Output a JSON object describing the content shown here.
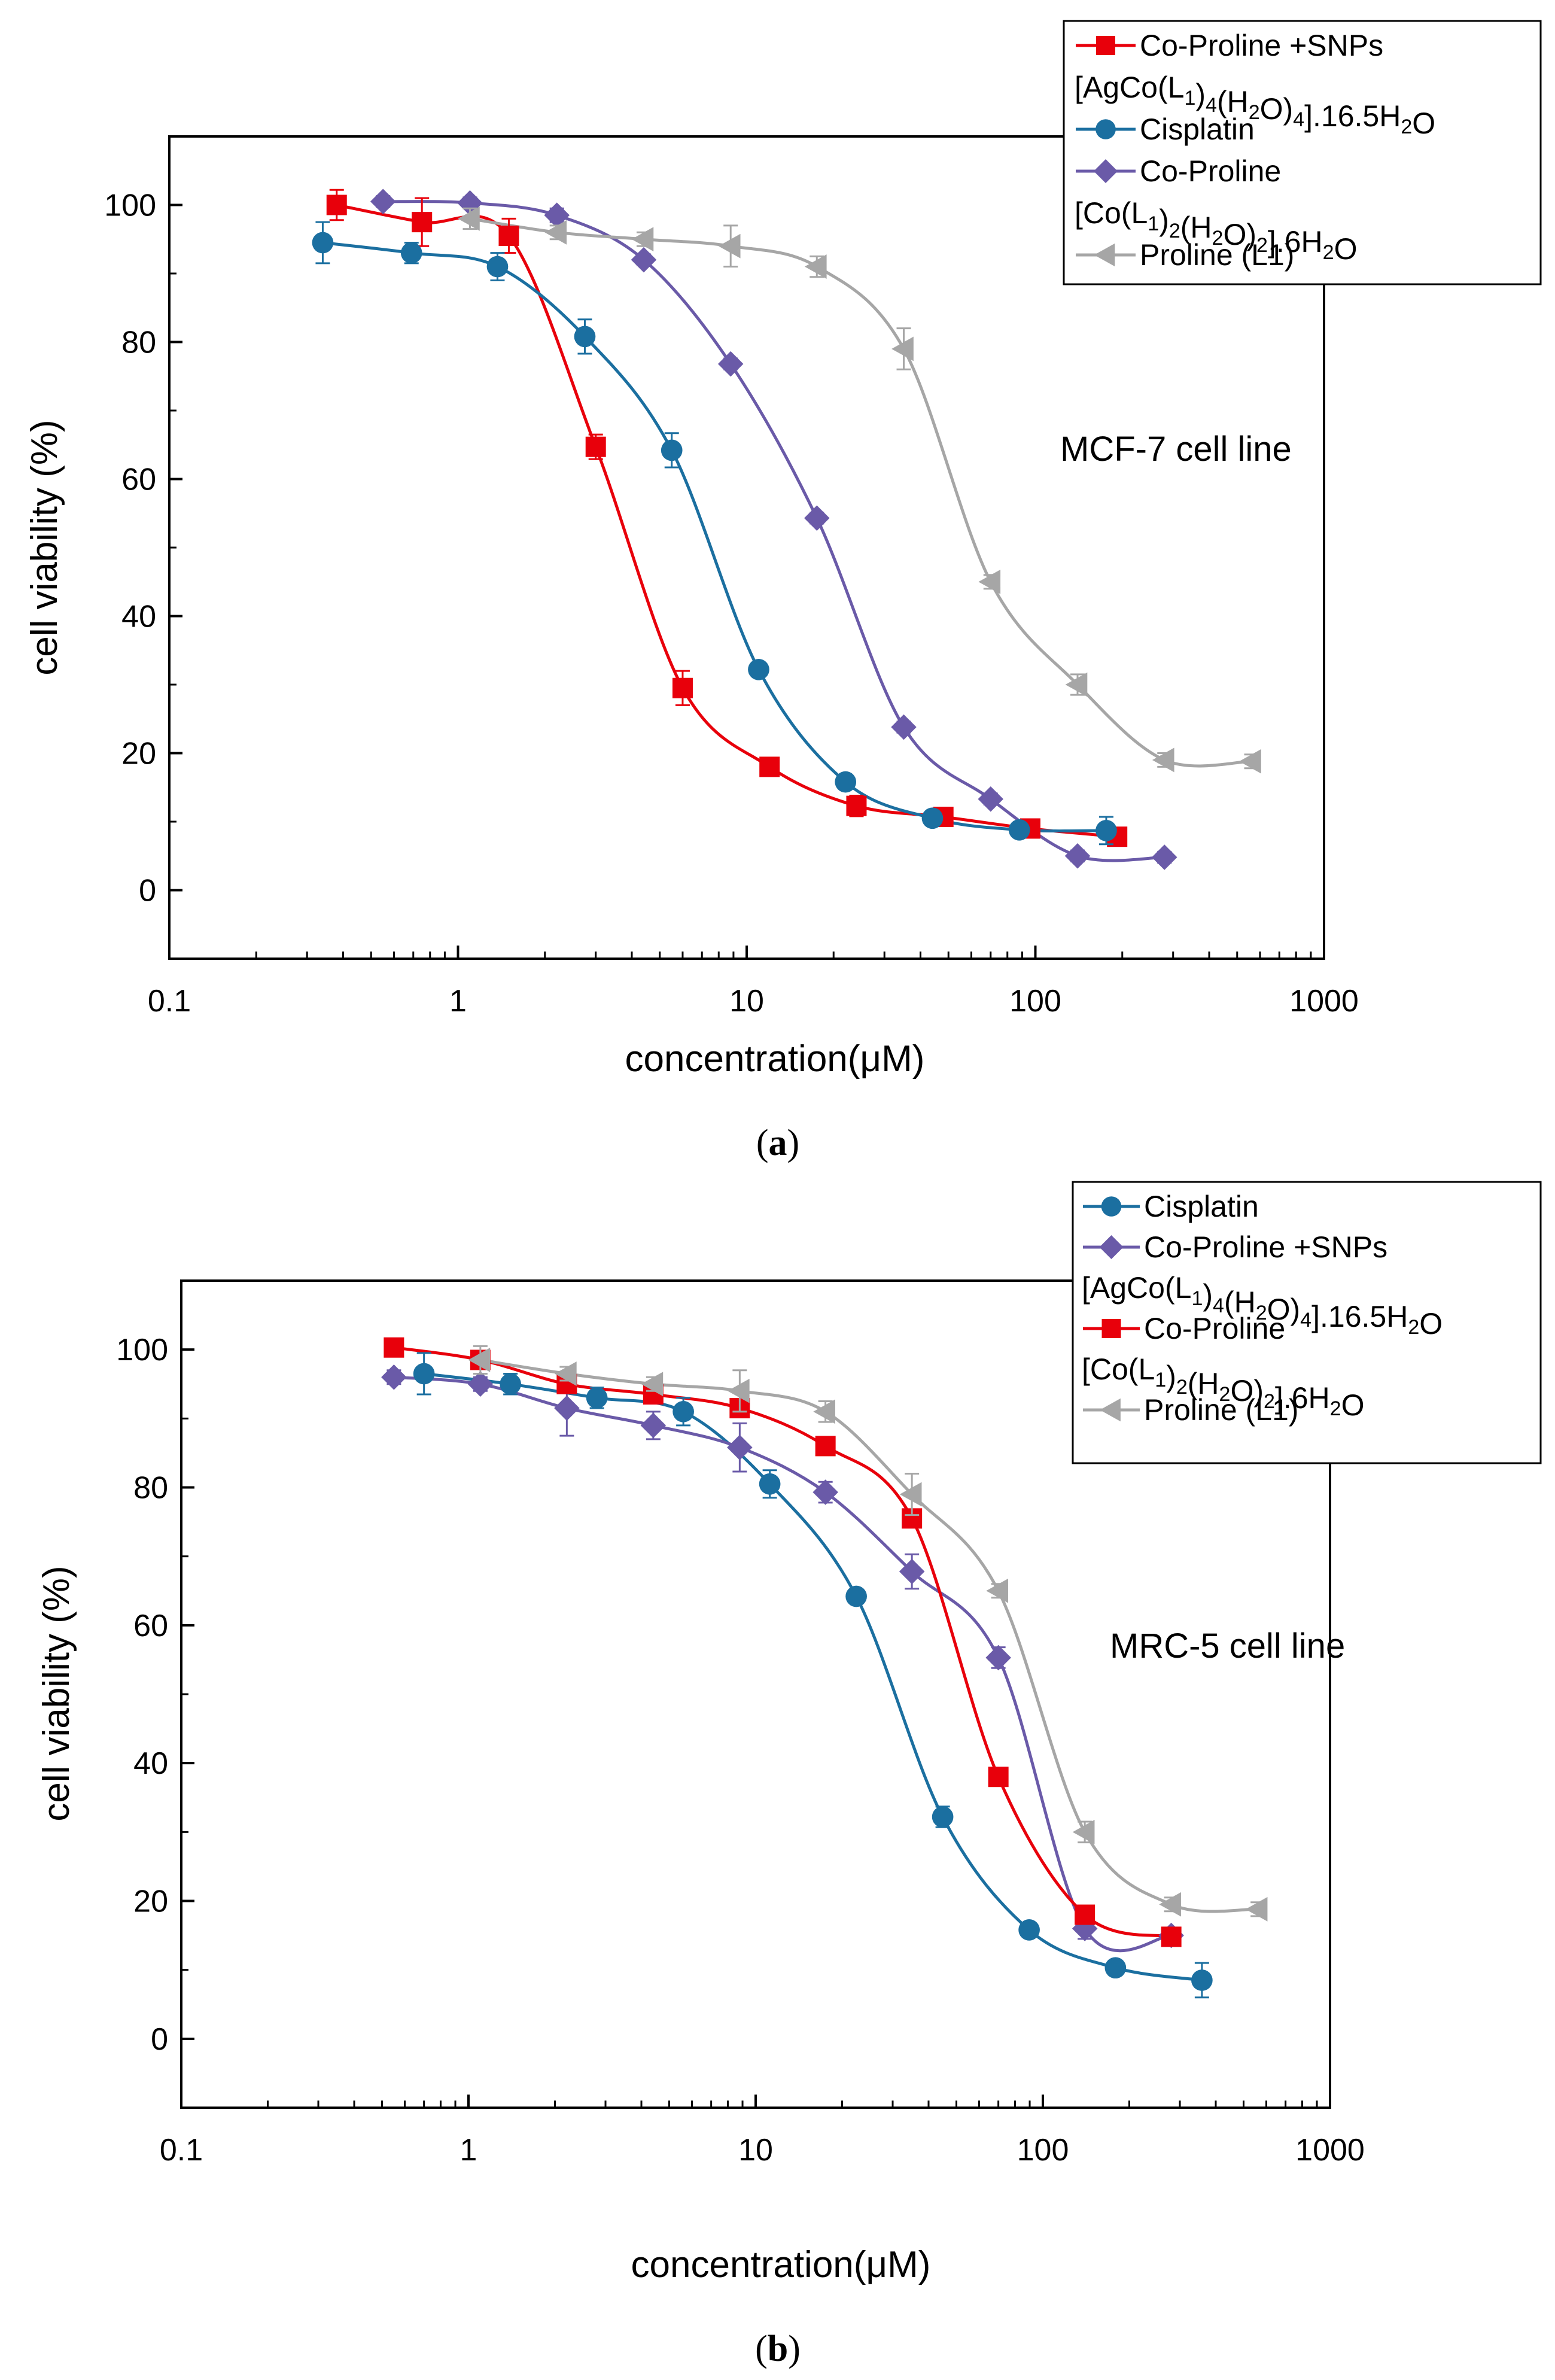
{
  "colors": {
    "red": "#e8000b",
    "blue": "#1b6fa0",
    "purple": "#6a5aa8",
    "gray": "#a6a6a6"
  },
  "chart_data": [
    {
      "type": "scatter",
      "x_scale": "log",
      "panel_label": "a",
      "annotation": "MCF-7 cell line",
      "xlabel": "concentration(μM)",
      "ylabel": "cell viability (%)",
      "xlim": [
        0.1,
        1000
      ],
      "ylim": [
        -10,
        110
      ],
      "x_ticks": [
        0.1,
        1,
        10,
        100,
        1000
      ],
      "x_tick_labels": [
        "0.1",
        "1",
        "10",
        "100",
        "1000"
      ],
      "y_ticks": [
        0,
        20,
        40,
        60,
        80,
        100
      ],
      "y_tick_labels": [
        "0",
        "20",
        "40",
        "60",
        "80",
        "100"
      ],
      "legend_position": "top-right",
      "series": [
        {
          "name": "Co-Proline +SNPs",
          "formula": "[AgCo(L1)4(H2O)4].16.5H2O",
          "color_key": "red",
          "marker": "square",
          "x": [
            0.38,
            0.75,
            1.5,
            3.0,
            6.0,
            12,
            24,
            48,
            96,
            192
          ],
          "y": [
            100,
            97.5,
            95.5,
            64.7,
            29.5,
            18.0,
            12.3,
            10.7,
            9.0,
            7.8
          ],
          "err": [
            2.2,
            3.5,
            2.5,
            1.8,
            2.5,
            1.2,
            1.5,
            1.0,
            1.0,
            1.0
          ]
        },
        {
          "name": "Cisplatin",
          "formula": "",
          "color_key": "blue",
          "marker": "circle",
          "x": [
            0.34,
            0.69,
            1.37,
            2.75,
            5.5,
            11,
            22,
            44,
            88,
            176
          ],
          "y": [
            94.5,
            93.0,
            91.0,
            80.8,
            64.2,
            32.2,
            15.8,
            10.5,
            8.8,
            8.7
          ],
          "err": [
            3.0,
            1.5,
            2.0,
            2.5,
            2.5,
            1.0,
            1.0,
            1.0,
            1.0,
            2.0
          ]
        },
        {
          "name": "Co-Proline",
          "formula": "[Co(L1)2(H2O)2].6H2O",
          "color_key": "purple",
          "marker": "diamond",
          "x": [
            0.55,
            1.1,
            2.2,
            4.4,
            8.8,
            17.5,
            35,
            70,
            140,
            280
          ],
          "y": [
            100.5,
            100.3,
            98.5,
            92.0,
            76.8,
            54.3,
            23.8,
            13.3,
            5.0,
            4.8
          ],
          "err": [
            0.8,
            0.8,
            1.0,
            0.8,
            0.8,
            0.8,
            0.8,
            0.8,
            0.8,
            0.8
          ]
        },
        {
          "name": "Proline (L1)",
          "formula": "",
          "color_key": "gray",
          "marker": "triangle-left",
          "x": [
            1.1,
            2.2,
            4.4,
            8.8,
            17.5,
            35,
            70,
            140,
            280,
            560
          ],
          "y": [
            98.0,
            96.0,
            95.0,
            94.0,
            91.0,
            79.0,
            45.0,
            30.0,
            19.0,
            18.8
          ],
          "err": [
            1.5,
            1.0,
            1.0,
            3.0,
            1.5,
            3.0,
            1.0,
            1.5,
            1.0,
            1.0
          ]
        }
      ]
    },
    {
      "type": "scatter",
      "x_scale": "log",
      "panel_label": "b",
      "annotation": "MRC-5 cell line",
      "xlabel": "concentration(μM)",
      "ylabel": "cell viability (%)",
      "xlim": [
        0.1,
        1000
      ],
      "ylim": [
        -10,
        110
      ],
      "x_ticks": [
        0.1,
        1,
        10,
        100,
        1000
      ],
      "x_tick_labels": [
        "0.1",
        "1",
        "10",
        "100",
        "1000"
      ],
      "y_ticks": [
        0,
        20,
        40,
        60,
        80,
        100
      ],
      "y_tick_labels": [
        "0",
        "20",
        "40",
        "60",
        "80",
        "100"
      ],
      "legend_position": "top-right",
      "series": [
        {
          "name": "Cisplatin",
          "formula": "",
          "color_key": "blue",
          "marker": "circle",
          "x": [
            0.7,
            1.4,
            2.8,
            5.6,
            11.2,
            22.4,
            44.8,
            89.6,
            179,
            358
          ],
          "y": [
            96.5,
            95.0,
            93.0,
            91.0,
            80.5,
            64.2,
            32.2,
            15.8,
            10.3,
            8.5
          ],
          "err": [
            3.0,
            1.5,
            1.5,
            2.0,
            2.0,
            1.0,
            1.5,
            1.0,
            1.0,
            2.5
          ]
        },
        {
          "name": "Co-Proline +SNPs",
          "formula": "[AgCo(L1)4(H2O)4].16.5H2O",
          "color_key": "purple",
          "marker": "diamond",
          "x": [
            0.55,
            1.1,
            2.2,
            4.4,
            8.8,
            17.5,
            35,
            70,
            140,
            280
          ],
          "y": [
            96.0,
            95.0,
            91.5,
            89.0,
            85.8,
            79.3,
            67.8,
            55.3,
            16.0,
            15.0
          ],
          "err": [
            1.0,
            1.0,
            4.0,
            2.0,
            3.5,
            1.5,
            2.5,
            1.5,
            1.5,
            1.0
          ]
        },
        {
          "name": "Co-Proline",
          "formula": "[Co(L1)2(H2O)2].6H2O",
          "color_key": "red",
          "marker": "square",
          "x": [
            0.55,
            1.1,
            2.2,
            4.4,
            8.8,
            17.5,
            35,
            70,
            140,
            280
          ],
          "y": [
            100.3,
            98.5,
            95.0,
            93.5,
            91.5,
            86.0,
            75.5,
            38.0,
            18.0,
            14.8
          ],
          "err": [
            0.8,
            0.8,
            0.8,
            0.8,
            0.8,
            0.8,
            0.8,
            0.8,
            0.8,
            0.8
          ]
        },
        {
          "name": "Proline (L1)",
          "formula": "",
          "color_key": "gray",
          "marker": "triangle-left",
          "x": [
            1.1,
            2.2,
            4.4,
            8.8,
            17.5,
            35,
            70,
            140,
            280,
            560
          ],
          "y": [
            98.5,
            96.5,
            95.0,
            94.0,
            91.0,
            79.0,
            65.0,
            30.0,
            19.5,
            18.8
          ],
          "err": [
            2.0,
            1.0,
            1.0,
            3.0,
            1.5,
            3.0,
            1.0,
            1.5,
            1.0,
            1.0
          ]
        }
      ]
    }
  ]
}
